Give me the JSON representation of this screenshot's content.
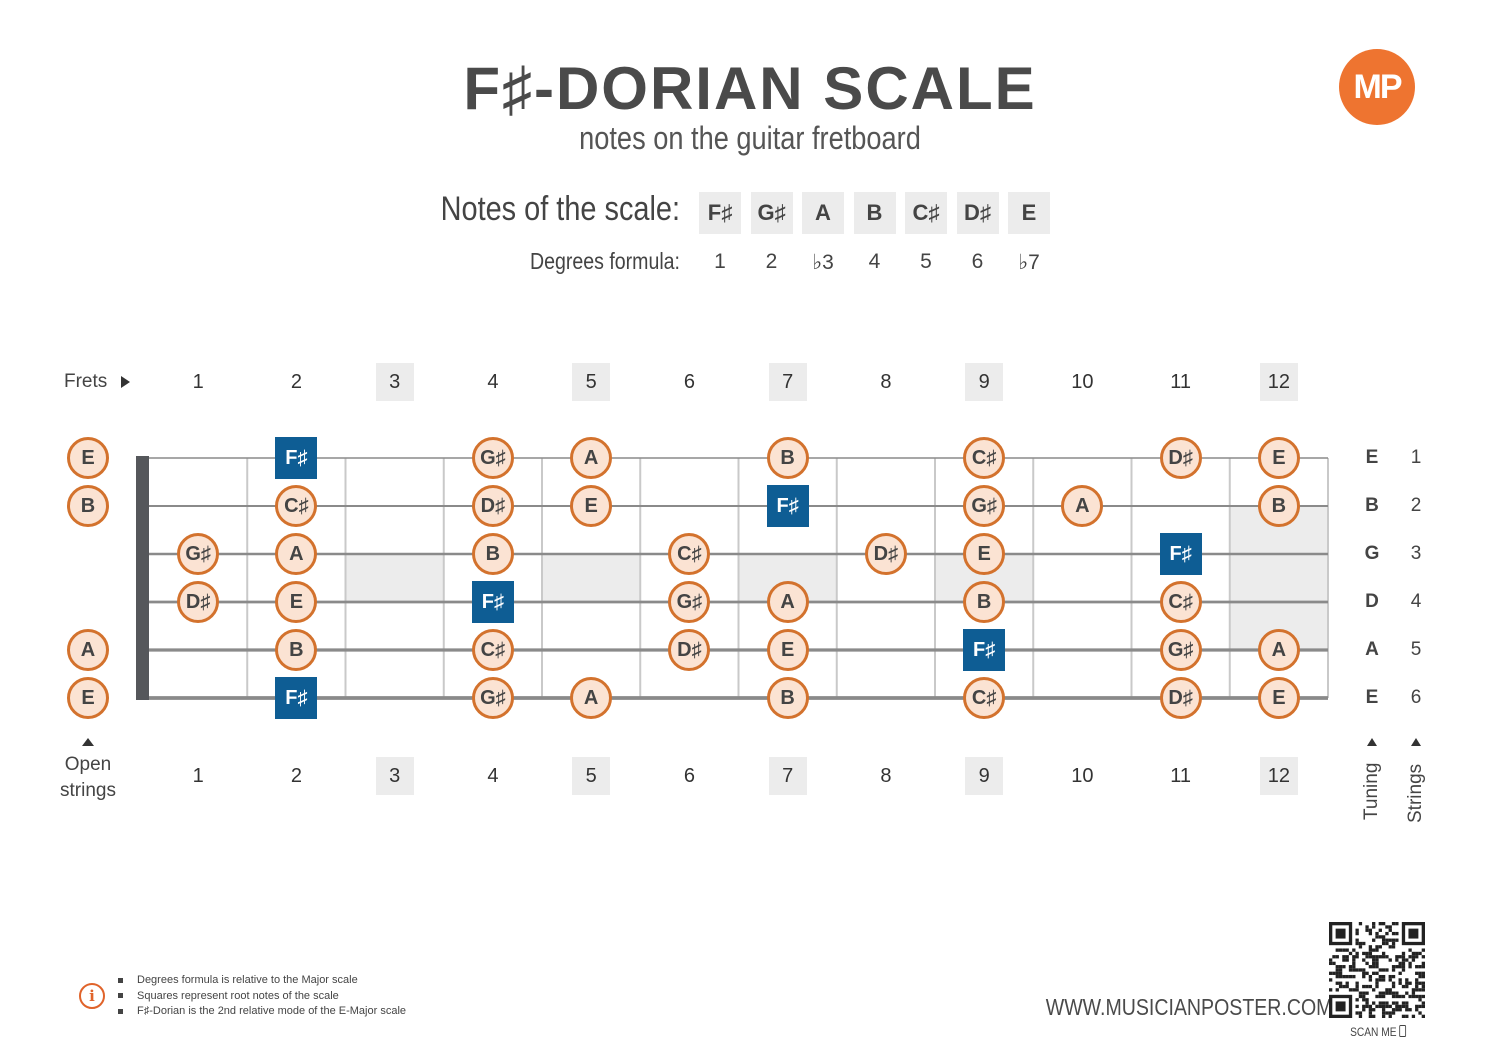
{
  "header": {
    "title": "F♯-DORIAN SCALE",
    "subtitle": "notes on the guitar fretboard",
    "logo_icon": "musicianposter-logo",
    "logo_text": "MP"
  },
  "scale": {
    "notes_label": "Notes of the scale:",
    "degrees_label": "Degrees formula:",
    "notes": [
      "F♯",
      "G♯",
      "A",
      "B",
      "C♯",
      "D♯",
      "E"
    ],
    "degrees": [
      "1",
      "2",
      "♭3",
      "4",
      "5",
      "6",
      "♭7"
    ]
  },
  "fretboard": {
    "frets_label": "Frets",
    "fret_numbers": [
      "1",
      "2",
      "3",
      "4",
      "5",
      "6",
      "7",
      "8",
      "9",
      "10",
      "11",
      "12"
    ],
    "marker_frets": [
      3,
      5,
      7,
      9,
      12
    ],
    "open_strings_label_top": "Open",
    "open_strings_label_bottom": "strings",
    "tuning_label": "Tuning",
    "strings_label": "Strings",
    "tuning": [
      "E",
      "B",
      "G",
      "D",
      "A",
      "E"
    ],
    "string_numbers": [
      "1",
      "2",
      "3",
      "4",
      "5",
      "6"
    ],
    "open_notes": [
      "E",
      "B",
      "",
      "",
      "A",
      "E"
    ],
    "notes": [
      [
        null,
        "F♯",
        null,
        "G♯",
        "A",
        null,
        "B",
        null,
        "C♯",
        null,
        "D♯",
        "E"
      ],
      [
        null,
        "C♯",
        null,
        "D♯",
        "E",
        null,
        "F♯",
        null,
        "G♯",
        "A",
        null,
        "B"
      ],
      [
        "G♯",
        "A",
        null,
        "B",
        null,
        "C♯",
        null,
        "D♯",
        "E",
        null,
        "F♯",
        null
      ],
      [
        "D♯",
        "E",
        null,
        "F♯",
        null,
        "G♯",
        "A",
        null,
        "B",
        null,
        "C♯",
        null
      ],
      [
        null,
        "B",
        null,
        "C♯",
        null,
        "D♯",
        "E",
        null,
        "F♯",
        null,
        "G♯",
        "A"
      ],
      [
        null,
        "F♯",
        null,
        "G♯",
        "A",
        null,
        "B",
        null,
        "C♯",
        null,
        "D♯",
        "E"
      ]
    ],
    "root_note": "F♯",
    "colors": {
      "note_fill": "#fbe3d3",
      "note_border": "#d3722d",
      "root_fill": "#0e5d94",
      "marker_fill": "#ececec"
    }
  },
  "footer": {
    "info_icon": "info-icon",
    "notes": [
      "Degrees formula is relative to the Major scale",
      "Squares represent root notes of the scale",
      "F♯-Dorian is the 2nd relative mode of the E-Major scale"
    ],
    "website": "WWW.MUSICIANPOSTER.COM",
    "scan_label": "SCAN ME",
    "qr_icon": "qr-code",
    "phone_icon": "phone-icon"
  }
}
